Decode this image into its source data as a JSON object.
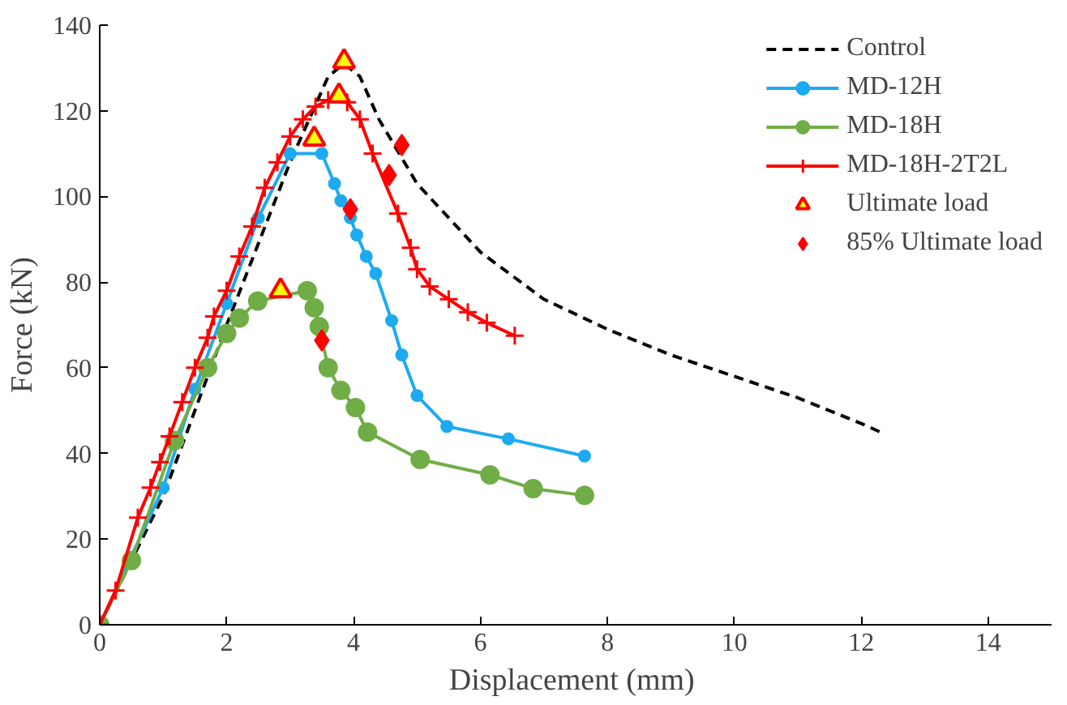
{
  "chart_data": {
    "type": "line",
    "xlabel": "Displacement  (mm)",
    "ylabel": "Force (kN)",
    "xlim": [
      0,
      15
    ],
    "ylim": [
      0,
      140
    ],
    "xticks": [
      0,
      2,
      4,
      6,
      8,
      10,
      12,
      14
    ],
    "yticks": [
      0,
      20,
      40,
      60,
      80,
      100,
      120,
      140
    ],
    "grid": false,
    "legend": "top right",
    "series": [
      {
        "name": "Control",
        "color": "#000000",
        "line_style": "dashed",
        "marker": "none",
        "x": [
          0,
          1,
          2,
          3,
          3.6,
          3.85,
          4.1,
          4.4,
          5,
          6,
          7,
          8,
          9,
          10,
          11,
          12,
          12.3
        ],
        "values": [
          0,
          30,
          70,
          108,
          128,
          131,
          128,
          118,
          103,
          87,
          76,
          69,
          63,
          58,
          53,
          47,
          45
        ]
      },
      {
        "name": "MD-12H",
        "color": "#1eaaf0",
        "marker": "circle",
        "x": [
          0,
          1,
          1.5,
          2,
          2.5,
          3,
          3.5,
          3.7,
          3.8,
          3.95,
          4.05,
          4.2,
          4.35,
          4.6,
          4.76,
          5.0,
          5.47,
          6.44,
          7.64
        ],
        "values": [
          0,
          32,
          55,
          75,
          95,
          110,
          110,
          103,
          99,
          95,
          91,
          86,
          82,
          71,
          63,
          53.5,
          46.3,
          43.4,
          39.4
        ]
      },
      {
        "name": "MD-18H",
        "color": "#70ad47",
        "marker": "circle",
        "x": [
          0,
          0.5,
          1.18,
          1.7,
          2.0,
          2.2,
          2.49,
          3.27,
          3.38,
          3.46,
          3.6,
          3.8,
          4.03,
          4.22,
          5.05,
          6.15,
          6.83,
          7.64
        ],
        "values": [
          0,
          15,
          43,
          60,
          68,
          71.6,
          75.6,
          78,
          74,
          69.6,
          60,
          54.7,
          50.7,
          45,
          38.6,
          35,
          31.8,
          30.2
        ]
      },
      {
        "name": "MD-18H-2T2L",
        "color": "#ff0000",
        "marker": "cross",
        "x": [
          0,
          0.25,
          0.6,
          0.8,
          0.95,
          1.1,
          1.3,
          1.5,
          1.7,
          1.8,
          2.0,
          2.2,
          2.4,
          2.6,
          2.8,
          3.0,
          3.2,
          3.4,
          3.6,
          3.9,
          4.1,
          4.3,
          4.7,
          4.9,
          5.0,
          5.2,
          5.5,
          5.8,
          6.1,
          6.54
        ],
        "values": [
          0,
          8,
          25,
          32,
          38,
          44,
          52,
          60,
          67,
          72,
          78,
          86,
          93,
          102,
          108,
          114,
          118,
          121,
          122.5,
          122,
          118,
          110,
          96,
          88,
          83,
          79,
          76,
          73,
          70.5,
          67.5
        ]
      },
      {
        "name": "Ultimate load",
        "type": "scatter",
        "color": "#ffff00",
        "marker": "triangle",
        "x": [
          3.85,
          3.38,
          2.85,
          3.77
        ],
        "values": [
          131.5,
          113.4,
          78,
          123.5
        ]
      },
      {
        "name": "85% Ultimate load",
        "type": "scatter",
        "color": "#ff0000",
        "marker": "diamond",
        "x": [
          4.76,
          3.95,
          3.5,
          4.56
        ],
        "values": [
          112,
          97,
          66.4,
          105
        ]
      }
    ]
  }
}
